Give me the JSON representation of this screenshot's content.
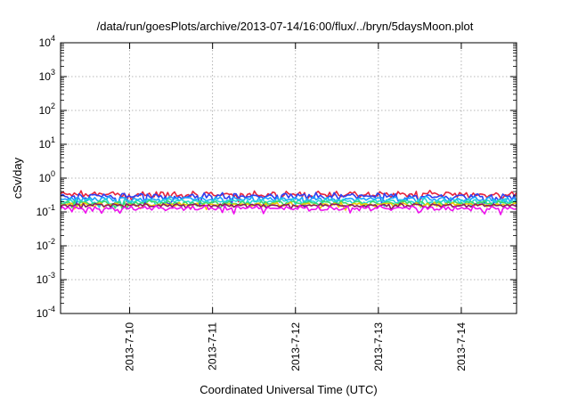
{
  "chart_data": {
    "type": "line",
    "title": "/data/run/goesPlots/archive/2013-07-14/16:00/flux/../bryn/5daysMoon.plot",
    "xlabel": "Coordinated Universal Time (UTC)",
    "ylabel": "cSv/day",
    "yscale": "log",
    "ylim": [
      0.0001,
      10000
    ],
    "yticks": [
      {
        "value": 0.0001,
        "base": "10",
        "exp": "-4"
      },
      {
        "value": 0.001,
        "base": "10",
        "exp": "-3"
      },
      {
        "value": 0.01,
        "base": "10",
        "exp": "-2"
      },
      {
        "value": 0.1,
        "base": "10",
        "exp": "-1"
      },
      {
        "value": 1,
        "base": "10",
        "exp": "0"
      },
      {
        "value": 10,
        "base": "10",
        "exp": "1"
      },
      {
        "value": 100,
        "base": "10",
        "exp": "2"
      },
      {
        "value": 1000,
        "base": "10",
        "exp": "3"
      },
      {
        "value": 10000,
        "base": "10",
        "exp": "4"
      }
    ],
    "xlim": [
      "2013-07-09T04:00",
      "2013-07-14T16:00"
    ],
    "xticks": [
      {
        "value": "2013-07-10T00:00",
        "label": "2013-7-10"
      },
      {
        "value": "2013-07-11T00:00",
        "label": "2013-7-11"
      },
      {
        "value": "2013-07-12T00:00",
        "label": "2013-7-12"
      },
      {
        "value": "2013-07-13T00:00",
        "label": "2013-7-13"
      },
      {
        "value": "2013-07-14T00:00",
        "label": "2013-7-14"
      }
    ],
    "grid": true,
    "series": [
      {
        "color": "#e8243c",
        "level": 0.33,
        "var": 0.18
      },
      {
        "color": "#2f3ff0",
        "level": 0.29,
        "var": 0.18
      },
      {
        "color": "#1aa3ff",
        "level": 0.24,
        "var": 0.14
      },
      {
        "color": "#22d8d8",
        "level": 0.21,
        "var": 0.13
      },
      {
        "color": "#3ddc6c",
        "level": 0.185,
        "var": 0.12
      },
      {
        "color": "#f0c800",
        "level": 0.165,
        "var": 0.11
      },
      {
        "color": "#8b1a5e",
        "level": 0.155,
        "var": 0.1
      },
      {
        "color": "#ee10ee",
        "level": 0.13,
        "var": 0.13
      }
    ]
  }
}
